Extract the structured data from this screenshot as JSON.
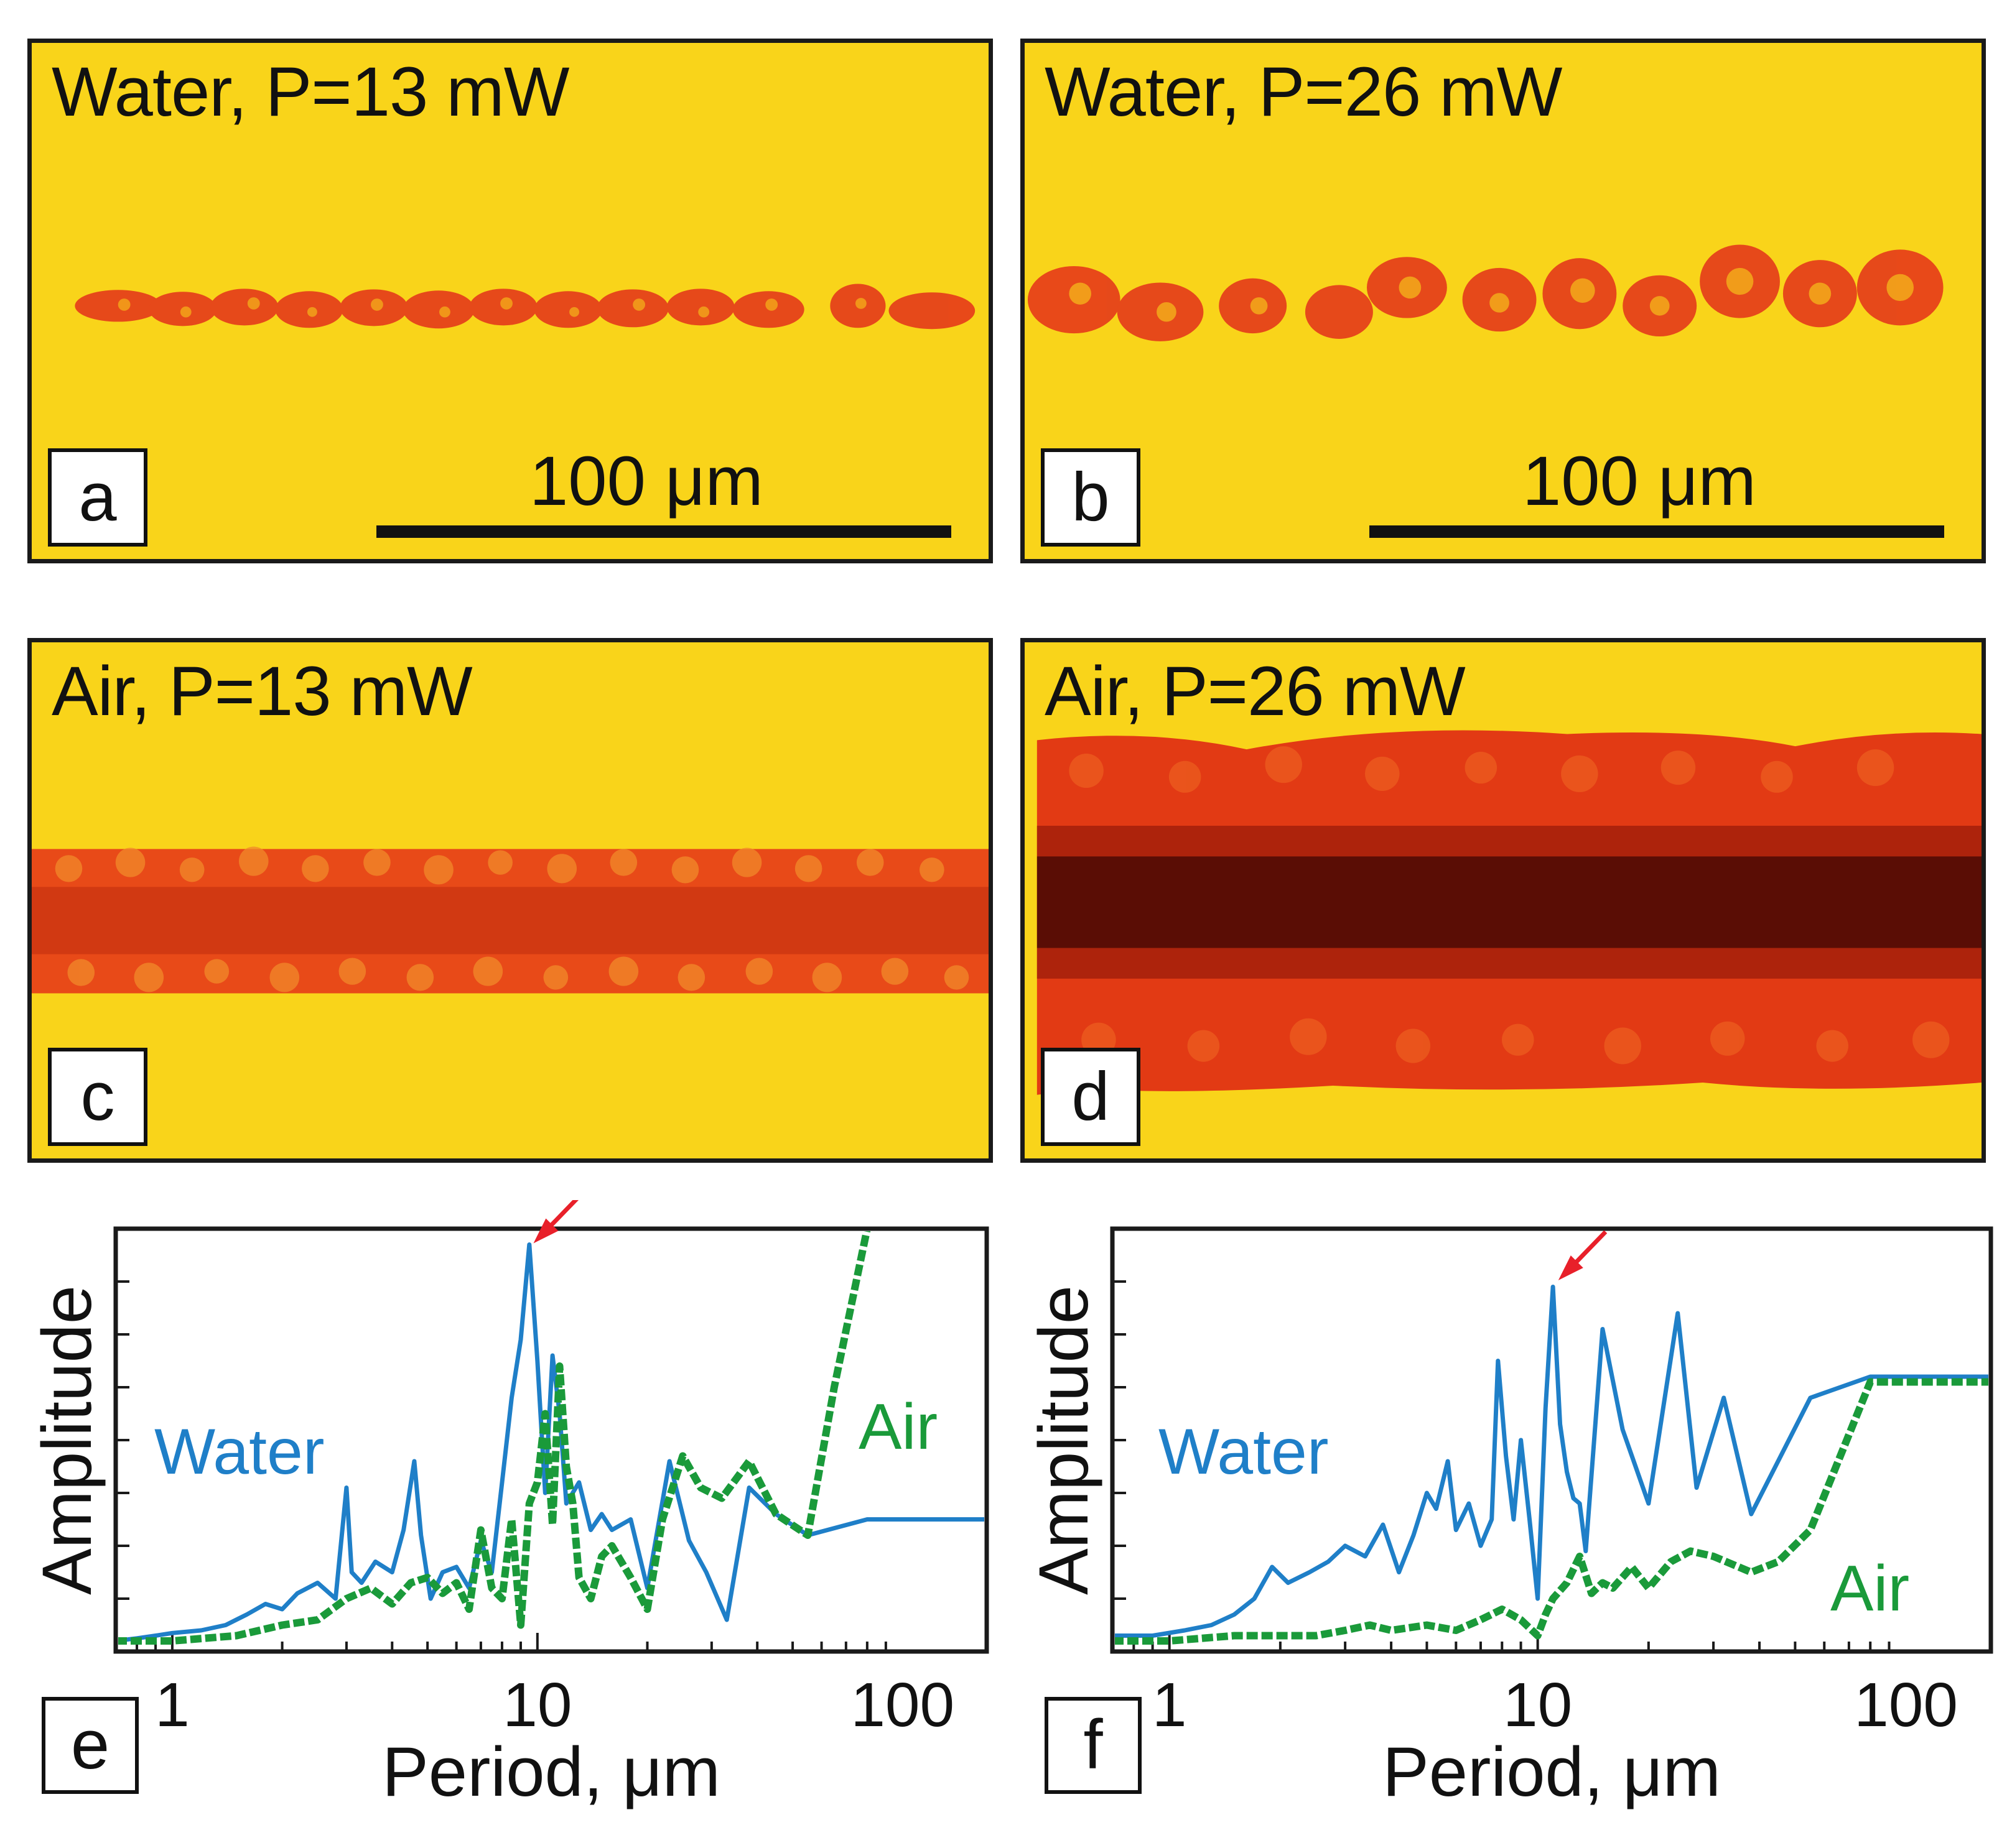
{
  "panels": {
    "a": {
      "label": "a",
      "title": "Water, P=13 mW",
      "scale_bar": "100 μm"
    },
    "b": {
      "label": "b",
      "title": "Water, P=26 mW",
      "scale_bar": "100 μm"
    },
    "c": {
      "label": "c",
      "title": "Air, P=13 mW"
    },
    "d": {
      "label": "d",
      "title": "Air, P=26 mW"
    }
  },
  "colors": {
    "background_yellow": "#f9d41a",
    "track_red": "#e53a1a",
    "track_dark": "#5a0d05",
    "water": "#1f7fc8",
    "air": "#1a9a3a",
    "arrow": "#e8202a"
  },
  "chart_data": [
    {
      "panel_label": "e",
      "type": "line",
      "xscale": "log",
      "xlabel": "Period, μm",
      "ylabel": "Amplitude",
      "xlim": [
        0.7,
        170
      ],
      "ylim": [
        0,
        8.0
      ],
      "xticks": [
        1,
        10,
        100
      ],
      "xtick_labels": [
        "1",
        "10",
        "100"
      ],
      "yticks": [
        1,
        2,
        3,
        4,
        5,
        6,
        7
      ],
      "series": [
        {
          "name": "Water",
          "color": "#1f7fc8",
          "x": [
            0.7,
            0.8,
            0.9,
            1.0,
            1.2,
            1.4,
            1.6,
            1.8,
            2.0,
            2.2,
            2.5,
            2.8,
            3.0,
            3.1,
            3.3,
            3.6,
            4.0,
            4.3,
            4.6,
            4.8,
            5.1,
            5.5,
            6.0,
            6.5,
            7.0,
            7.5,
            8.0,
            8.5,
            9.0,
            9.5,
            10.0,
            10.5,
            11.0,
            11.5,
            12.0,
            13.0,
            14.0,
            15.0,
            16.0,
            18.0,
            20.0,
            23.0,
            26.0,
            29.0,
            33.0,
            38.0,
            45.0,
            55.0,
            80.0,
            170.0
          ],
          "y": [
            0.2,
            0.25,
            0.3,
            0.35,
            0.4,
            0.5,
            0.7,
            0.9,
            0.8,
            1.1,
            1.3,
            1.0,
            3.1,
            1.5,
            1.3,
            1.7,
            1.5,
            2.3,
            3.6,
            2.2,
            1.0,
            1.5,
            1.6,
            1.2,
            2.1,
            1.5,
            3.2,
            4.8,
            5.9,
            7.7,
            5.5,
            3.0,
            5.6,
            4.5,
            2.8,
            3.2,
            2.3,
            2.6,
            2.3,
            2.5,
            1.2,
            3.6,
            2.1,
            1.5,
            0.6,
            3.1,
            2.6,
            2.2,
            2.5,
            2.5
          ]
        },
        {
          "name": "Air",
          "color": "#1a9a3a",
          "x": [
            0.7,
            1.0,
            1.5,
            2.0,
            2.5,
            3.0,
            3.5,
            4.0,
            4.5,
            5.0,
            5.5,
            6.0,
            6.5,
            7.0,
            7.5,
            8.0,
            8.5,
            9.0,
            9.5,
            10.0,
            10.5,
            11.0,
            11.5,
            12.0,
            12.5,
            13.0,
            14.0,
            15.0,
            16.0,
            18.0,
            20.0,
            22.0,
            25.0,
            28.0,
            32.0,
            38.0,
            45.0,
            55.0,
            65.0,
            80.0
          ],
          "y": [
            0.2,
            0.2,
            0.3,
            0.5,
            0.6,
            1.0,
            1.2,
            0.9,
            1.3,
            1.4,
            1.1,
            1.3,
            0.8,
            2.3,
            1.2,
            1.0,
            2.5,
            0.5,
            2.8,
            3.2,
            4.5,
            2.4,
            5.4,
            3.5,
            2.8,
            1.4,
            1.0,
            1.8,
            2.0,
            1.4,
            0.8,
            2.5,
            3.7,
            3.1,
            2.9,
            3.6,
            2.6,
            2.2,
            5.0,
            8.0
          ]
        }
      ],
      "annotations": [
        {
          "text": "Water",
          "color": "#1f7fc8"
        },
        {
          "text": "Air",
          "color": "#1a9a3a"
        }
      ],
      "arrow_at": [
        9.6,
        7.7
      ]
    },
    {
      "panel_label": "f",
      "type": "line",
      "xscale": "log",
      "xlabel": "Period, μm",
      "ylabel": "Amplitude",
      "xlim": [
        0.7,
        170
      ],
      "ylim": [
        0,
        8.0
      ],
      "xticks": [
        1,
        10,
        100
      ],
      "xtick_labels": [
        "1",
        "10",
        "100"
      ],
      "yticks": [
        1,
        2,
        3,
        4,
        5,
        6,
        7
      ],
      "series": [
        {
          "name": "Water",
          "color": "#1f7fc8",
          "x": [
            0.7,
            0.9,
            1.1,
            1.3,
            1.5,
            1.7,
            1.9,
            2.1,
            2.4,
            2.7,
            3.0,
            3.4,
            3.8,
            4.2,
            4.6,
            5.0,
            5.3,
            5.7,
            6.0,
            6.5,
            7.0,
            7.5,
            7.8,
            8.2,
            8.6,
            9.0,
            9.5,
            10.0,
            10.5,
            11.0,
            11.5,
            12.0,
            12.5,
            13.0,
            13.5,
            15.0,
            17.0,
            20.0,
            24.0,
            27.0,
            32.0,
            38.0,
            55.0,
            80.0,
            170.0
          ],
          "y": [
            0.3,
            0.3,
            0.4,
            0.5,
            0.7,
            1.0,
            1.6,
            1.3,
            1.5,
            1.7,
            2.0,
            1.8,
            2.4,
            1.5,
            2.2,
            3.0,
            2.7,
            3.6,
            2.3,
            2.8,
            2.0,
            2.5,
            5.5,
            3.7,
            2.5,
            4.0,
            2.5,
            1.0,
            4.6,
            6.9,
            4.3,
            3.4,
            2.9,
            2.8,
            1.9,
            6.1,
            4.2,
            2.8,
            6.4,
            3.1,
            4.8,
            2.6,
            4.8,
            5.2,
            5.2
          ]
        },
        {
          "name": "Air",
          "color": "#1a9a3a",
          "x": [
            0.7,
            1.0,
            1.5,
            2.0,
            2.5,
            3.0,
            3.5,
            4.0,
            5.0,
            6.0,
            7.0,
            8.0,
            9.0,
            10.0,
            10.5,
            11.0,
            12.0,
            13.0,
            14.0,
            15.0,
            16.0,
            18.0,
            20.0,
            23.0,
            26.0,
            30.0,
            38.0,
            45.0,
            55.0,
            80.0,
            170.0
          ],
          "y": [
            0.2,
            0.2,
            0.3,
            0.3,
            0.3,
            0.4,
            0.5,
            0.4,
            0.5,
            0.4,
            0.6,
            0.8,
            0.6,
            0.3,
            0.7,
            1.0,
            1.3,
            1.8,
            1.1,
            1.3,
            1.2,
            1.6,
            1.2,
            1.7,
            1.9,
            1.8,
            1.5,
            1.7,
            2.3,
            5.1,
            5.1
          ]
        }
      ],
      "annotations": [
        {
          "text": "Water",
          "color": "#1f7fc8"
        },
        {
          "text": "Air",
          "color": "#1a9a3a"
        }
      ],
      "arrow_at": [
        11.2,
        7.0
      ]
    }
  ]
}
